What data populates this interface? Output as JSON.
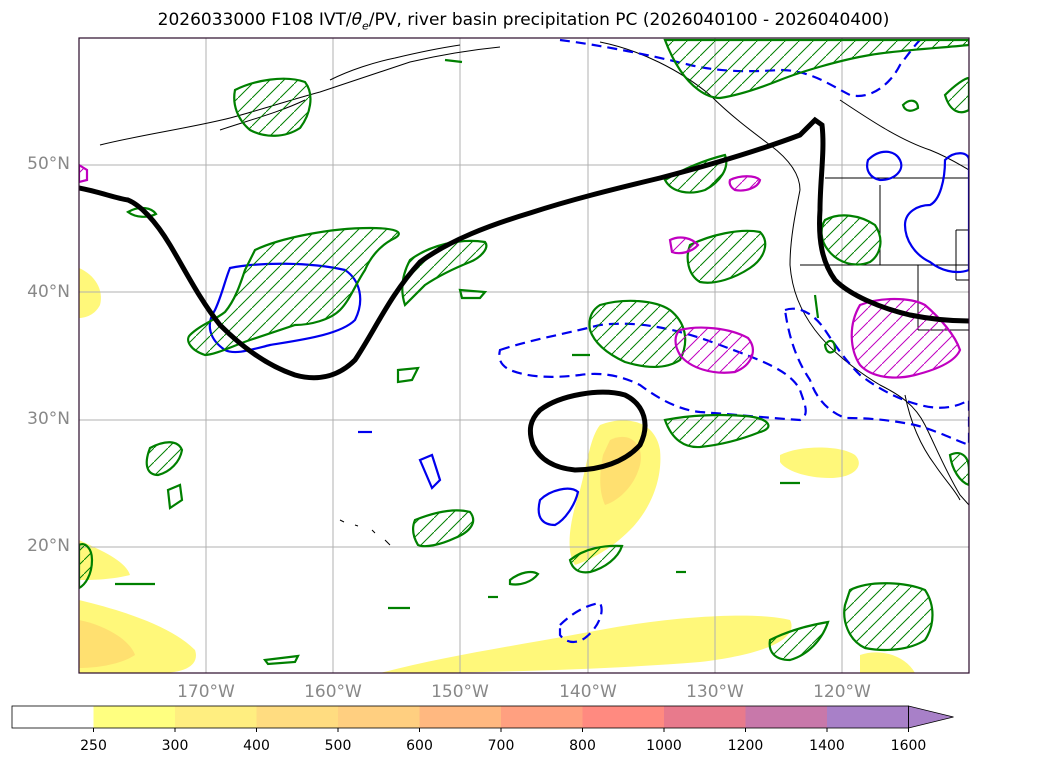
{
  "title": "2026033000 F108 IVT/θe/PV, river basin precipitation PC (2026040100 - 2026040400)",
  "title_parts": {
    "prefix": "2026033000 F108 IVT/",
    "theta": "θ",
    "sub": "e",
    "suffix": "/PV, river basin precipitation PC (2026040100 - 2026040400)"
  },
  "map": {
    "lat_labels": [
      "50°N",
      "40°N",
      "30°N",
      "20°N"
    ],
    "lon_labels": [
      "170°W",
      "160°W",
      "150°W",
      "140°W",
      "130°W",
      "120°W"
    ],
    "frame_color": "#2a0a2a",
    "grid_color": "#b0b0b0",
    "coast_color": "#000000"
  },
  "colorbar": {
    "ticks": [
      "250",
      "300",
      "400",
      "500",
      "600",
      "700",
      "800",
      "1000",
      "1200",
      "1400",
      "1600"
    ],
    "colors": [
      "#ffffff",
      "#ffff80",
      "#ffee80",
      "#ffdc80",
      "#ffcf80",
      "#ffb880",
      "#ffa080",
      "#ff8a80",
      "#e87a8c",
      "#c878aa",
      "#a880c8"
    ],
    "extend": "max"
  },
  "layers": {
    "ivt_fill_colors": [
      "#fff87a",
      "#ffe070"
    ],
    "pv_line_color": "#000000",
    "theta_pos_color": "#0000ee",
    "green_hatch_color": "#008000",
    "magenta_hatch_color": "#c000c0"
  }
}
